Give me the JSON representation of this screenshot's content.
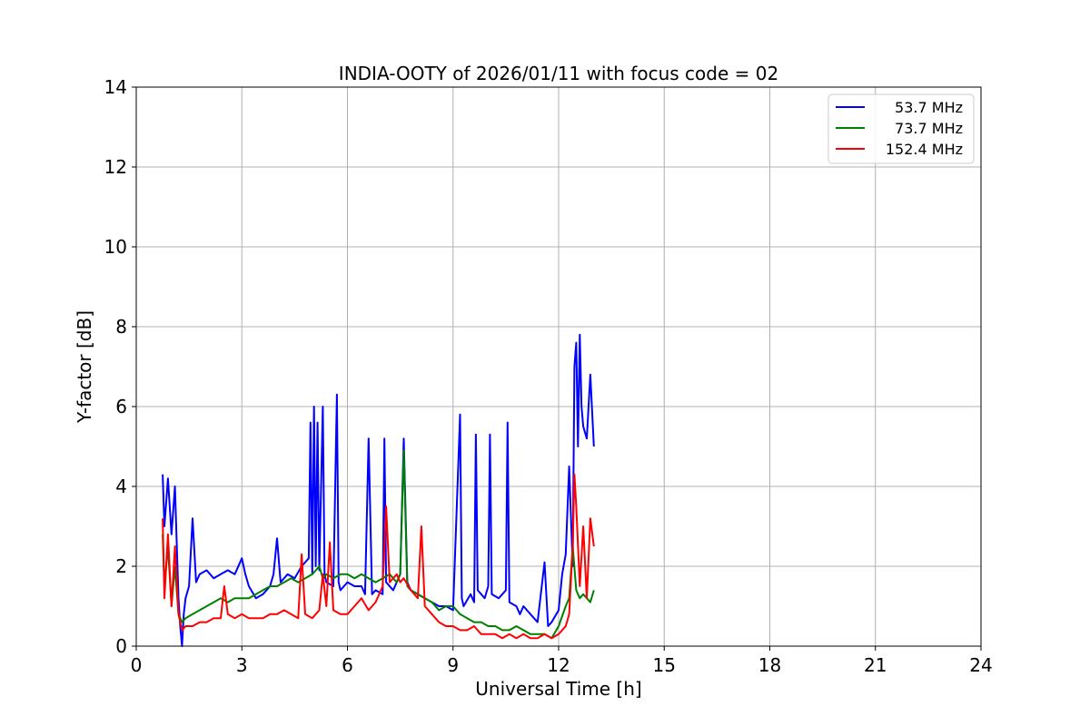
{
  "chart_data": {
    "type": "line",
    "title": "INDIA-OOTY of 2026/01/11 with focus code = 02",
    "xlabel": "Universal Time [h]",
    "ylabel": "Y-factor [dB]",
    "xlim": [
      0,
      24
    ],
    "ylim": [
      0,
      14
    ],
    "xticks": [
      0,
      3,
      6,
      9,
      12,
      15,
      18,
      21,
      24
    ],
    "yticks": [
      0,
      2,
      4,
      6,
      8,
      10,
      12,
      14
    ],
    "grid": true,
    "legend_position": "top-right",
    "series": [
      {
        "name": "53.7 MHz",
        "color": "#0000ff",
        "x": [
          0.75,
          0.8,
          0.9,
          1.0,
          1.1,
          1.2,
          1.25,
          1.3,
          1.35,
          1.4,
          1.5,
          1.6,
          1.7,
          1.8,
          2.0,
          2.2,
          2.4,
          2.6,
          2.8,
          3.0,
          3.1,
          3.2,
          3.4,
          3.6,
          3.8,
          3.9,
          4.0,
          4.1,
          4.3,
          4.5,
          4.7,
          4.9,
          4.95,
          5.0,
          5.05,
          5.1,
          5.15,
          5.2,
          5.3,
          5.35,
          5.4,
          5.6,
          5.7,
          5.75,
          5.8,
          6.0,
          6.2,
          6.4,
          6.5,
          6.6,
          6.7,
          6.8,
          7.0,
          7.05,
          7.1,
          7.3,
          7.5,
          7.6,
          7.7,
          7.8,
          8.0,
          8.2,
          8.4,
          8.6,
          8.8,
          9.0,
          9.2,
          9.25,
          9.3,
          9.5,
          9.6,
          9.65,
          9.7,
          9.9,
          10.0,
          10.05,
          10.1,
          10.3,
          10.5,
          10.55,
          10.6,
          10.8,
          10.9,
          11.0,
          11.2,
          11.4,
          11.6,
          11.7,
          11.8,
          12.0,
          12.1,
          12.2,
          12.3,
          12.4,
          12.45,
          12.5,
          12.55,
          12.6,
          12.65,
          12.7,
          12.8,
          12.9,
          13.0
        ],
        "y": [
          4.3,
          3.0,
          4.2,
          2.8,
          4.0,
          1.2,
          0.5,
          0.0,
          0.8,
          1.2,
          1.5,
          3.2,
          1.6,
          1.8,
          1.9,
          1.7,
          1.8,
          1.9,
          1.8,
          2.2,
          1.8,
          1.5,
          1.2,
          1.3,
          1.5,
          1.8,
          2.7,
          1.6,
          1.8,
          1.7,
          2.0,
          2.2,
          5.6,
          1.8,
          6.0,
          2.0,
          5.6,
          1.9,
          6.0,
          1.8,
          1.6,
          1.5,
          6.3,
          1.6,
          1.4,
          1.6,
          1.5,
          1.5,
          1.3,
          5.2,
          1.3,
          1.4,
          1.3,
          5.2,
          1.6,
          1.4,
          1.8,
          5.2,
          1.6,
          1.4,
          1.3,
          1.2,
          1.1,
          1.0,
          1.0,
          0.9,
          5.8,
          1.2,
          1.0,
          1.3,
          1.1,
          5.3,
          1.4,
          1.2,
          1.5,
          5.3,
          1.3,
          1.2,
          1.4,
          5.6,
          1.1,
          1.0,
          0.8,
          1.0,
          0.8,
          0.6,
          2.1,
          0.5,
          0.6,
          0.9,
          1.8,
          2.3,
          4.5,
          2.0,
          7.0,
          7.6,
          5.0,
          7.8,
          6.0,
          5.5,
          5.2,
          6.8,
          5.0
        ]
      },
      {
        "name": "73.7 MHz",
        "color": "#008000",
        "x": [
          0.75,
          0.8,
          0.9,
          1.0,
          1.1,
          1.2,
          1.3,
          1.4,
          1.6,
          1.8,
          2.0,
          2.2,
          2.4,
          2.6,
          2.8,
          3.0,
          3.2,
          3.4,
          3.6,
          3.8,
          4.0,
          4.2,
          4.4,
          4.6,
          4.8,
          5.0,
          5.2,
          5.3,
          5.4,
          5.6,
          5.8,
          6.0,
          6.2,
          6.4,
          6.6,
          6.8,
          7.0,
          7.2,
          7.4,
          7.5,
          7.6,
          7.7,
          7.8,
          8.0,
          8.2,
          8.4,
          8.6,
          8.8,
          9.0,
          9.2,
          9.4,
          9.6,
          9.8,
          10.0,
          10.2,
          10.4,
          10.6,
          10.8,
          11.0,
          11.2,
          11.4,
          11.6,
          11.8,
          12.0,
          12.2,
          12.3,
          12.4,
          12.5,
          12.6,
          12.7,
          12.8,
          12.9,
          13.0
        ],
        "y": [
          2.8,
          1.5,
          2.5,
          1.0,
          2.0,
          0.8,
          0.6,
          0.7,
          0.8,
          0.9,
          1.0,
          1.1,
          1.2,
          1.1,
          1.2,
          1.2,
          1.2,
          1.3,
          1.4,
          1.5,
          1.5,
          1.6,
          1.7,
          1.6,
          1.7,
          1.8,
          2.0,
          1.7,
          1.8,
          1.7,
          1.8,
          1.8,
          1.7,
          1.8,
          1.7,
          1.6,
          1.7,
          1.8,
          1.6,
          1.8,
          4.9,
          1.5,
          1.4,
          1.3,
          1.2,
          1.1,
          0.9,
          1.0,
          1.0,
          0.8,
          0.7,
          0.6,
          0.6,
          0.5,
          0.5,
          0.4,
          0.4,
          0.5,
          0.4,
          0.3,
          0.3,
          0.3,
          0.2,
          0.5,
          1.0,
          1.2,
          2.5,
          1.4,
          1.2,
          1.3,
          1.2,
          1.1,
          1.4
        ]
      },
      {
        "name": "152.4 MHz",
        "color": "#ff0000",
        "x": [
          0.75,
          0.8,
          0.9,
          1.0,
          1.1,
          1.2,
          1.3,
          1.4,
          1.6,
          1.8,
          2.0,
          2.2,
          2.4,
          2.5,
          2.6,
          2.8,
          3.0,
          3.2,
          3.4,
          3.6,
          3.8,
          4.0,
          4.2,
          4.4,
          4.6,
          4.7,
          4.8,
          5.0,
          5.2,
          5.3,
          5.4,
          5.5,
          5.6,
          5.8,
          6.0,
          6.2,
          6.4,
          6.6,
          6.8,
          7.0,
          7.1,
          7.2,
          7.4,
          7.5,
          7.6,
          7.8,
          8.0,
          8.1,
          8.2,
          8.4,
          8.6,
          8.8,
          9.0,
          9.2,
          9.4,
          9.6,
          9.8,
          10.0,
          10.2,
          10.4,
          10.6,
          10.8,
          11.0,
          11.2,
          11.4,
          11.6,
          11.8,
          12.0,
          12.2,
          12.3,
          12.4,
          12.45,
          12.5,
          12.6,
          12.7,
          12.8,
          12.9,
          13.0
        ],
        "y": [
          3.2,
          1.2,
          2.8,
          1.0,
          2.5,
          0.8,
          0.4,
          0.5,
          0.5,
          0.6,
          0.6,
          0.7,
          0.7,
          1.5,
          0.8,
          0.7,
          0.8,
          0.7,
          0.7,
          0.7,
          0.8,
          0.8,
          0.9,
          0.8,
          0.7,
          2.3,
          0.8,
          0.7,
          0.9,
          1.8,
          1.0,
          2.6,
          0.9,
          0.8,
          0.8,
          1.0,
          1.2,
          0.9,
          1.1,
          1.5,
          3.5,
          1.6,
          1.8,
          1.6,
          1.7,
          1.4,
          1.2,
          3.0,
          1.0,
          0.8,
          0.6,
          0.5,
          0.5,
          0.4,
          0.4,
          0.5,
          0.3,
          0.3,
          0.3,
          0.2,
          0.3,
          0.2,
          0.3,
          0.2,
          0.2,
          0.3,
          0.2,
          0.3,
          0.5,
          0.8,
          2.5,
          4.3,
          3.5,
          1.5,
          3.0,
          1.2,
          3.2,
          2.5
        ]
      }
    ]
  }
}
